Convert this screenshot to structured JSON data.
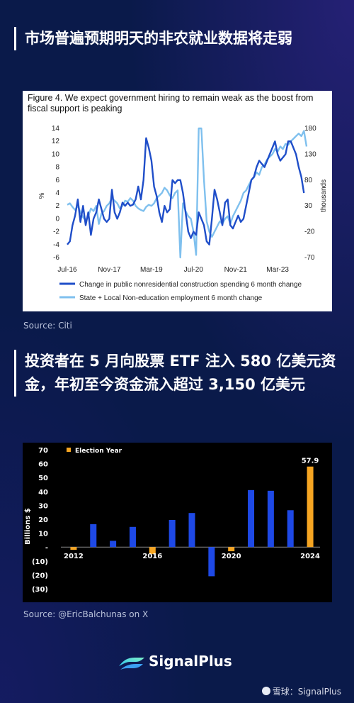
{
  "headline1": "市场普遍预期明天的非农就业数据将走弱",
  "headline2": "投资者在 5 月向股票 ETF 注入 580 亿美元资金，年初至今资金流入超过 3,150 亿美元",
  "source1": "Source: Citi",
  "source2": "Source: @EricBalchunas on X",
  "brand": "SignalPlus",
  "watermark": "雪球：SignalPlus",
  "colors": {
    "background": "#0a1a4a",
    "dark_blue": "#1f4ec9",
    "light_blue": "#7fc0ee",
    "bar_blue": "#1e49e6",
    "bar_orange": "#f5a522"
  },
  "chart_data": [
    {
      "type": "line",
      "caption": "Figure 4. We expect government hiring to remain weak as the boost from fiscal support is peaking",
      "ylabel_left": "%",
      "ylabel_right": "thousands",
      "ylim_left": [
        -6,
        14
      ],
      "ylim_right": [
        -70,
        180
      ],
      "left_ticks": [
        "14",
        "12",
        "10",
        "8",
        "6",
        "4",
        "2",
        "0",
        "-2",
        "-4",
        "-6"
      ],
      "right_ticks": [
        "180",
        "130",
        "80",
        "30",
        "-20",
        "-70"
      ],
      "x_tick_labels": [
        "Jul-16",
        "Nov-17",
        "Mar-19",
        "Jul-20",
        "Nov-21",
        "Mar-23"
      ],
      "legend_position": "bottom",
      "series": [
        {
          "name": "Change in public nonresidential construction spending 6 month change",
          "axis": "left",
          "values": [
            [
              "2016-07",
              -4
            ],
            [
              "2016-08",
              -3.5
            ],
            [
              "2016-09",
              -1
            ],
            [
              "2016-10",
              0.5
            ],
            [
              "2016-11",
              3
            ],
            [
              "2016-12",
              -0.5
            ],
            [
              "2017-01",
              2
            ],
            [
              "2017-02",
              -1
            ],
            [
              "2017-03",
              1
            ],
            [
              "2017-04",
              -2.5
            ],
            [
              "2017-05",
              0
            ],
            [
              "2017-06",
              1
            ],
            [
              "2017-07",
              3
            ],
            [
              "2017-08",
              1.5
            ],
            [
              "2017-09",
              0
            ],
            [
              "2017-10",
              -0.5
            ],
            [
              "2017-11",
              0
            ],
            [
              "2017-12",
              4.5
            ],
            [
              "2018-01",
              1
            ],
            [
              "2018-02",
              0
            ],
            [
              "2018-03",
              1
            ],
            [
              "2018-04",
              2.5
            ],
            [
              "2018-05",
              2
            ],
            [
              "2018-06",
              2.5
            ],
            [
              "2018-07",
              2
            ],
            [
              "2018-08",
              2.2
            ],
            [
              "2018-09",
              3
            ],
            [
              "2018-10",
              5
            ],
            [
              "2018-11",
              3
            ],
            [
              "2018-12",
              6
            ],
            [
              "2019-01",
              12.5
            ],
            [
              "2019-02",
              11
            ],
            [
              "2019-03",
              9
            ],
            [
              "2019-04",
              5
            ],
            [
              "2019-05",
              3.5
            ],
            [
              "2019-06",
              1
            ],
            [
              "2019-07",
              -0.5
            ],
            [
              "2019-08",
              2
            ],
            [
              "2019-09",
              1
            ],
            [
              "2019-10",
              1.5
            ],
            [
              "2019-11",
              6
            ],
            [
              "2019-12",
              5.5
            ],
            [
              "2020-01",
              6
            ],
            [
              "2020-02",
              6
            ],
            [
              "2020-03",
              4
            ],
            [
              "2020-04",
              1
            ],
            [
              "2020-05",
              -2
            ],
            [
              "2020-06",
              -3
            ],
            [
              "2020-07",
              -2
            ],
            [
              "2020-08",
              -2.5
            ],
            [
              "2020-09",
              1
            ],
            [
              "2020-10",
              0
            ],
            [
              "2020-11",
              -1
            ],
            [
              "2020-12",
              -3.5
            ],
            [
              "2021-01",
              -4
            ],
            [
              "2021-02",
              0
            ],
            [
              "2021-03",
              4.5
            ],
            [
              "2021-04",
              3
            ],
            [
              "2021-05",
              1
            ],
            [
              "2021-06",
              -1
            ],
            [
              "2021-07",
              2.5
            ],
            [
              "2021-08",
              3
            ],
            [
              "2021-09",
              -1
            ],
            [
              "2021-10",
              -1.5
            ],
            [
              "2021-11",
              -0.5
            ],
            [
              "2021-12",
              0.5
            ],
            [
              "2022-01",
              -0.5
            ],
            [
              "2022-02",
              0
            ],
            [
              "2022-03",
              2
            ],
            [
              "2022-04",
              4
            ],
            [
              "2022-05",
              6
            ],
            [
              "2022-06",
              6.5
            ],
            [
              "2022-07",
              8
            ],
            [
              "2022-08",
              9
            ],
            [
              "2022-09",
              8.5
            ],
            [
              "2022-10",
              8
            ],
            [
              "2022-11",
              9
            ],
            [
              "2022-12",
              10
            ],
            [
              "2023-01",
              11
            ],
            [
              "2023-02",
              12
            ],
            [
              "2023-03",
              10
            ],
            [
              "2023-04",
              9
            ],
            [
              "2023-05",
              9.5
            ],
            [
              "2023-06",
              10
            ],
            [
              "2023-07",
              12
            ],
            [
              "2023-08",
              12
            ],
            [
              "2023-09",
              11
            ],
            [
              "2023-10",
              10
            ],
            [
              "2023-11",
              8
            ],
            [
              "2023-12",
              6.5
            ],
            [
              "2024-01",
              4
            ]
          ]
        },
        {
          "name": "State + Local Non-education employment 6 month change",
          "axis": "right",
          "values": [
            [
              "2016-07",
              32
            ],
            [
              "2016-08",
              35
            ],
            [
              "2016-09",
              28
            ],
            [
              "2016-10",
              22
            ],
            [
              "2016-11",
              30
            ],
            [
              "2016-12",
              18
            ],
            [
              "2017-01",
              8
            ],
            [
              "2017-02",
              2
            ],
            [
              "2017-03",
              10
            ],
            [
              "2017-04",
              25
            ],
            [
              "2017-05",
              20
            ],
            [
              "2017-06",
              30
            ],
            [
              "2017-07",
              -5
            ],
            [
              "2017-08",
              15
            ],
            [
              "2017-09",
              20
            ],
            [
              "2017-10",
              30
            ],
            [
              "2017-11",
              35
            ],
            [
              "2017-12",
              45
            ],
            [
              "2018-01",
              40
            ],
            [
              "2018-02",
              35
            ],
            [
              "2018-03",
              25
            ],
            [
              "2018-04",
              30
            ],
            [
              "2018-05",
              40
            ],
            [
              "2018-06",
              38
            ],
            [
              "2018-07",
              45
            ],
            [
              "2018-08",
              40
            ],
            [
              "2018-09",
              30
            ],
            [
              "2018-10",
              25
            ],
            [
              "2018-11",
              22
            ],
            [
              "2018-12",
              20
            ],
            [
              "2019-01",
              28
            ],
            [
              "2019-02",
              32
            ],
            [
              "2019-03",
              30
            ],
            [
              "2019-04",
              35
            ],
            [
              "2019-05",
              45
            ],
            [
              "2019-06",
              50
            ],
            [
              "2019-07",
              55
            ],
            [
              "2019-08",
              65
            ],
            [
              "2019-09",
              60
            ],
            [
              "2019-10",
              50
            ],
            [
              "2019-11",
              45
            ],
            [
              "2019-12",
              55
            ],
            [
              "2020-01",
              60
            ],
            [
              "2020-02",
              -70
            ],
            [
              "2020-03",
              35
            ],
            [
              "2020-04",
              20
            ],
            [
              "2020-05",
              10
            ],
            [
              "2020-06",
              5
            ],
            [
              "2020-07",
              -20
            ],
            [
              "2020-08",
              -65
            ],
            [
              "2020-09",
              180
            ],
            [
              "2020-10",
              180
            ],
            [
              "2020-11",
              80
            ],
            [
              "2020-12",
              0
            ],
            [
              "2021-01",
              -20
            ],
            [
              "2021-02",
              -30
            ],
            [
              "2021-03",
              -20
            ],
            [
              "2021-04",
              -10
            ],
            [
              "2021-05",
              0
            ],
            [
              "2021-06",
              -5
            ],
            [
              "2021-07",
              5
            ],
            [
              "2021-08",
              10
            ],
            [
              "2021-09",
              -5
            ],
            [
              "2021-10",
              10
            ],
            [
              "2021-11",
              20
            ],
            [
              "2021-12",
              30
            ],
            [
              "2022-01",
              40
            ],
            [
              "2022-02",
              55
            ],
            [
              "2022-03",
              60
            ],
            [
              "2022-04",
              70
            ],
            [
              "2022-05",
              80
            ],
            [
              "2022-06",
              85
            ],
            [
              "2022-07",
              95
            ],
            [
              "2022-08",
              90
            ],
            [
              "2022-09",
              105
            ],
            [
              "2022-10",
              110
            ],
            [
              "2022-11",
              120
            ],
            [
              "2022-12",
              125
            ],
            [
              "2023-01",
              130
            ],
            [
              "2023-02",
              140
            ],
            [
              "2023-03",
              135
            ],
            [
              "2023-04",
              145
            ],
            [
              "2023-05",
              140
            ],
            [
              "2023-06",
              150
            ],
            [
              "2023-07",
              148
            ],
            [
              "2023-08",
              155
            ],
            [
              "2023-09",
              160
            ],
            [
              "2023-10",
              165
            ],
            [
              "2023-11",
              170
            ],
            [
              "2023-12",
              165
            ],
            [
              "2024-01",
              175
            ],
            [
              "2024-02",
              145
            ]
          ]
        }
      ]
    },
    {
      "type": "bar",
      "ylabel": "Billions $",
      "ylim": [
        -30,
        70
      ],
      "y_tick_labels": [
        "70",
        "60",
        "50",
        "40",
        "30",
        "20",
        "10",
        "-",
        "(10)",
        "(20)",
        "(30)"
      ],
      "x_tick_labels": [
        "2012",
        "2016",
        "2020",
        "2024"
      ],
      "legend": "Election Year",
      "legend_position": "top-left",
      "categories": [
        "2012",
        "2013",
        "2014",
        "2015",
        "2016",
        "2017",
        "2018",
        "2019",
        "2020",
        "2021",
        "2022",
        "2023",
        "2024"
      ],
      "values": [
        -2,
        16.5,
        4.5,
        14.5,
        -5,
        19.5,
        24.5,
        -21,
        -3,
        41,
        40.5,
        26.5,
        57.9
      ],
      "election_year": [
        true,
        false,
        false,
        false,
        true,
        false,
        false,
        false,
        true,
        false,
        false,
        false,
        true
      ],
      "data_labels": {
        "2024": "57.9"
      }
    }
  ]
}
